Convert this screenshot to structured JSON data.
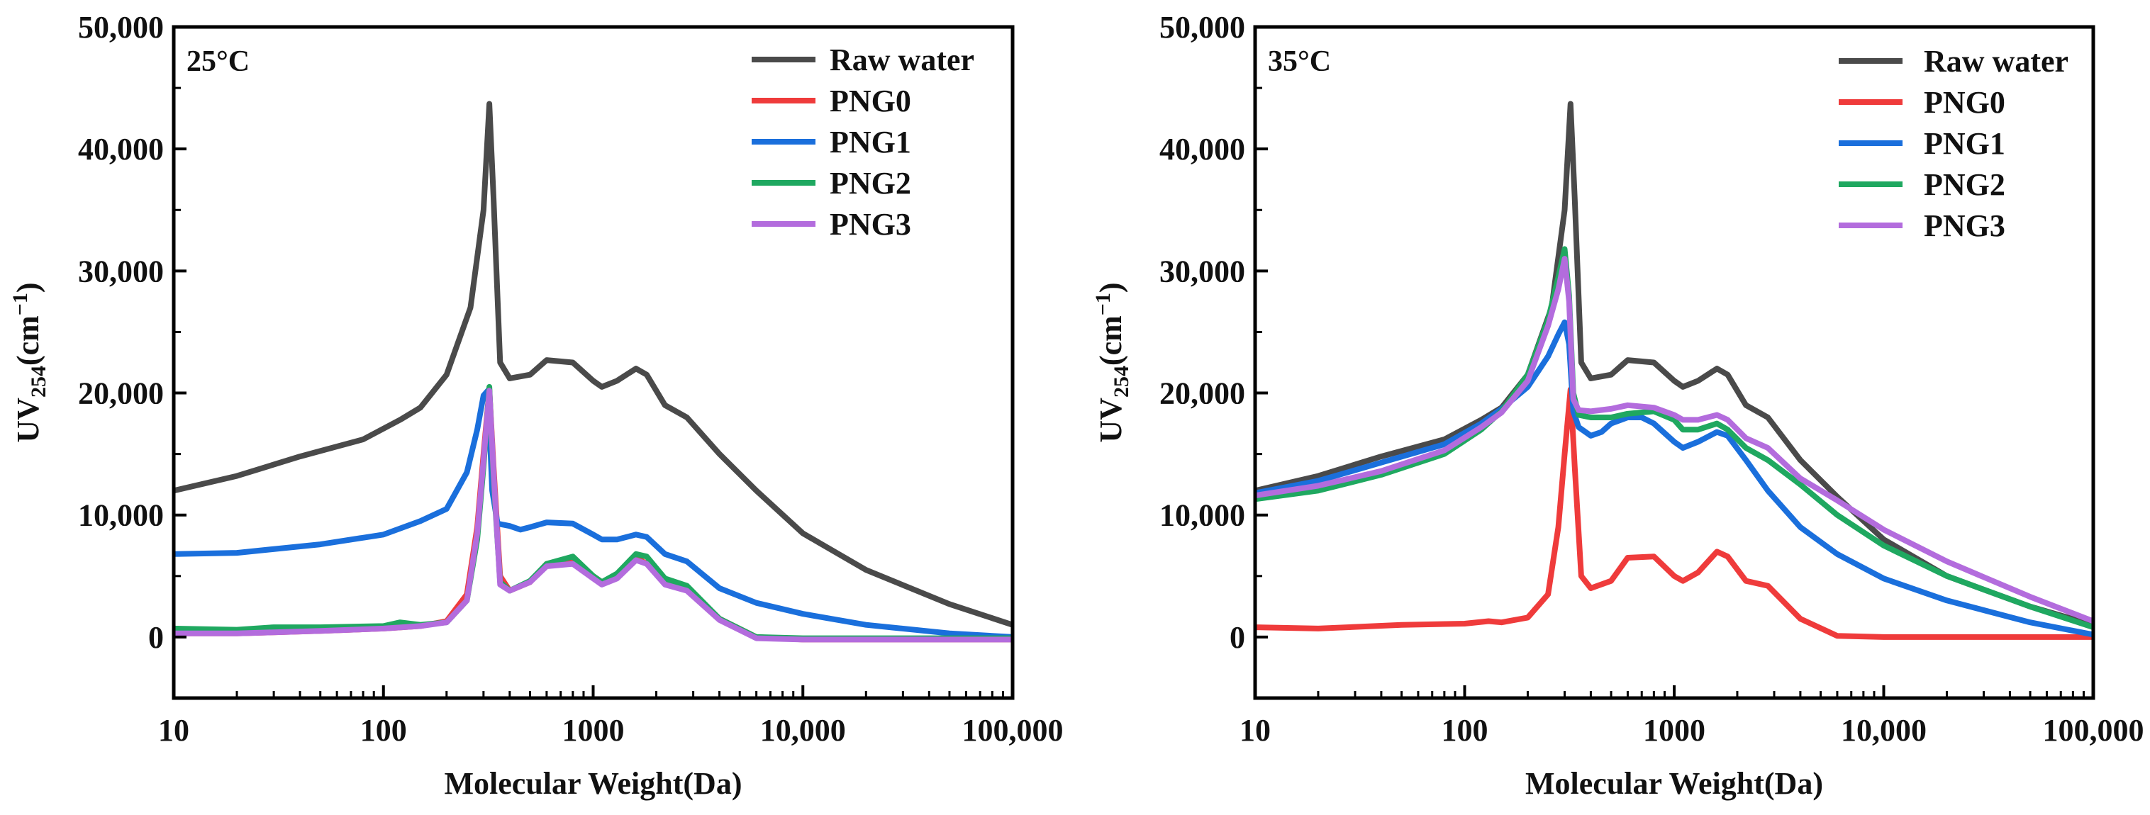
{
  "chart_data": [
    {
      "type": "line",
      "title": "25°C",
      "xlabel": "Molecular Weight(Da)",
      "ylabel": "UV254(cm−1)",
      "ylabel_main": "UV",
      "ylabel_sub": "254",
      "ylabel_unit": "(cm",
      "ylabel_sup": "−1",
      "ylabel_close": ")",
      "xscale": "log",
      "xlim": [
        10,
        100000
      ],
      "ylim": [
        -5000,
        50000
      ],
      "xticks": [
        10,
        100,
        1000,
        10000,
        100000
      ],
      "xtick_labels": [
        "10",
        "100",
        "1000",
        "10,000",
        "100,000"
      ],
      "yticks": [
        0,
        10000,
        20000,
        30000,
        40000,
        50000
      ],
      "ytick_labels": [
        "0",
        "10,000",
        "20,000",
        "30,000",
        "40,000",
        "50,000"
      ],
      "legend_position": "top-right",
      "series": [
        {
          "name": "Raw water",
          "color": "#4a4a4a",
          "x": [
            10,
            20,
            40,
            80,
            120,
            150,
            200,
            260,
            300,
            320,
            335,
            360,
            400,
            500,
            600,
            800,
            1000,
            1100,
            1300,
            1600,
            1800,
            2200,
            2800,
            4000,
            6000,
            10000,
            20000,
            50000,
            100000
          ],
          "y": [
            12000,
            13200,
            14800,
            16200,
            17800,
            18800,
            21500,
            27000,
            35000,
            43700,
            36000,
            22500,
            21200,
            21500,
            22700,
            22500,
            21000,
            20500,
            21000,
            22000,
            21500,
            19000,
            18000,
            15000,
            12000,
            8500,
            5500,
            2700,
            1000
          ]
        },
        {
          "name": "PNG0",
          "color": "#ef3b3b",
          "x": [
            10,
            20,
            50,
            100,
            150,
            200,
            250,
            280,
            300,
            320,
            335,
            360,
            400,
            500,
            600,
            800,
            1000,
            1100,
            1300,
            1600,
            1800,
            2200,
            2800,
            4000,
            6000,
            10000,
            20000,
            50000,
            100000
          ],
          "y": [
            300,
            300,
            500,
            700,
            900,
            1300,
            3500,
            9000,
            15000,
            20300,
            14000,
            5000,
            3800,
            4500,
            6000,
            6200,
            5000,
            4500,
            5000,
            6500,
            6000,
            4500,
            4000,
            1500,
            0,
            -200,
            -200,
            -200,
            -200
          ]
        },
        {
          "name": "PNG1",
          "color": "#1a6fdc",
          "x": [
            10,
            20,
            50,
            100,
            150,
            200,
            250,
            280,
            300,
            315,
            330,
            350,
            400,
            450,
            500,
            600,
            800,
            1000,
            1100,
            1300,
            1600,
            1800,
            2200,
            2800,
            4000,
            6000,
            10000,
            20000,
            50000,
            100000
          ],
          "y": [
            6800,
            6900,
            7600,
            8400,
            9500,
            10500,
            13500,
            17000,
            19800,
            20200,
            12000,
            9300,
            9100,
            8800,
            9000,
            9400,
            9300,
            8400,
            8000,
            8000,
            8400,
            8200,
            6800,
            6200,
            4000,
            2800,
            1900,
            1000,
            300,
            0
          ]
        },
        {
          "name": "PNG2",
          "color": "#1fa860",
          "x": [
            10,
            20,
            30,
            50,
            100,
            120,
            150,
            200,
            250,
            280,
            300,
            320,
            335,
            360,
            400,
            500,
            600,
            800,
            1000,
            1100,
            1300,
            1600,
            1800,
            2200,
            2800,
            4000,
            6000,
            10000,
            20000,
            50000,
            100000
          ],
          "y": [
            700,
            600,
            800,
            800,
            900,
            1200,
            1000,
            1200,
            3000,
            8000,
            14000,
            20500,
            13000,
            4500,
            3800,
            4600,
            6000,
            6600,
            5000,
            4500,
            5200,
            6800,
            6600,
            4800,
            4200,
            1500,
            0,
            -100,
            -100,
            -100,
            -100
          ]
        },
        {
          "name": "PNG3",
          "color": "#b36cdd",
          "x": [
            10,
            20,
            50,
            100,
            150,
            200,
            250,
            280,
            300,
            320,
            335,
            360,
            400,
            500,
            600,
            800,
            1000,
            1100,
            1300,
            1600,
            1800,
            2200,
            2800,
            4000,
            6000,
            10000,
            20000,
            50000,
            100000
          ],
          "y": [
            300,
            300,
            500,
            700,
            900,
            1200,
            3000,
            8500,
            14500,
            20200,
            13500,
            4300,
            3800,
            4500,
            5800,
            6000,
            4800,
            4300,
            4800,
            6300,
            6000,
            4300,
            3800,
            1400,
            -100,
            -200,
            -200,
            -200,
            -200
          ]
        }
      ]
    },
    {
      "type": "line",
      "title": "35°C",
      "xlabel": "Molecular Weight(Da)",
      "ylabel": "UV254(cm−1)",
      "ylabel_main": "UV",
      "ylabel_sub": "254",
      "ylabel_unit": "(cm",
      "ylabel_sup": "−1",
      "ylabel_close": ")",
      "xscale": "log",
      "xlim": [
        10,
        100000
      ],
      "ylim": [
        -5000,
        50000
      ],
      "xticks": [
        10,
        100,
        1000,
        10000,
        100000
      ],
      "xtick_labels": [
        "10",
        "100",
        "1000",
        "10,000",
        "100,000"
      ],
      "yticks": [
        0,
        10000,
        20000,
        30000,
        40000,
        50000
      ],
      "ytick_labels": [
        "0",
        "10,000",
        "20,000",
        "30,000",
        "40,000",
        "50,000"
      ],
      "legend_position": "top-right",
      "series": [
        {
          "name": "Raw water",
          "color": "#4a4a4a",
          "x": [
            10,
            20,
            40,
            80,
            120,
            150,
            200,
            260,
            300,
            320,
            335,
            360,
            400,
            500,
            600,
            800,
            1000,
            1100,
            1300,
            1600,
            1800,
            2200,
            2800,
            4000,
            6000,
            10000,
            20000,
            50000,
            100000
          ],
          "y": [
            12000,
            13200,
            14800,
            16200,
            17800,
            18800,
            21500,
            27000,
            35000,
            43700,
            36000,
            22500,
            21200,
            21500,
            22700,
            22500,
            21000,
            20500,
            21000,
            22000,
            21500,
            19000,
            18000,
            14500,
            11500,
            8000,
            5000,
            2500,
            1000
          ]
        },
        {
          "name": "PNG0",
          "color": "#ef3b3b",
          "x": [
            10,
            20,
            50,
            100,
            130,
            150,
            200,
            250,
            280,
            300,
            320,
            335,
            360,
            400,
            500,
            600,
            800,
            1000,
            1100,
            1300,
            1600,
            1800,
            2200,
            2800,
            4000,
            6000,
            10000,
            20000,
            50000,
            100000
          ],
          "y": [
            800,
            700,
            1000,
            1100,
            1300,
            1200,
            1600,
            3500,
            9000,
            15000,
            20300,
            14000,
            5000,
            4000,
            4600,
            6500,
            6600,
            5000,
            4600,
            5300,
            7000,
            6600,
            4600,
            4200,
            1500,
            100,
            0,
            0,
            0,
            0
          ]
        },
        {
          "name": "PNG1",
          "color": "#1a6fdc",
          "x": [
            10,
            20,
            40,
            80,
            120,
            150,
            200,
            250,
            280,
            300,
            315,
            330,
            350,
            400,
            450,
            500,
            600,
            700,
            800,
            1000,
            1100,
            1300,
            1600,
            1800,
            2200,
            2800,
            4000,
            6000,
            10000,
            20000,
            50000,
            100000
          ],
          "y": [
            11800,
            12800,
            14300,
            15800,
            17500,
            18700,
            20500,
            23000,
            24800,
            25800,
            24000,
            18500,
            17200,
            16500,
            16800,
            17500,
            18000,
            18000,
            17500,
            16000,
            15500,
            16000,
            16800,
            16500,
            14500,
            12000,
            9000,
            6800,
            4800,
            3000,
            1200,
            200
          ]
        },
        {
          "name": "PNG2",
          "color": "#1fa860",
          "x": [
            10,
            20,
            40,
            80,
            120,
            150,
            200,
            250,
            280,
            300,
            315,
            330,
            350,
            400,
            500,
            600,
            800,
            1000,
            1100,
            1300,
            1600,
            1800,
            2200,
            2800,
            4000,
            6000,
            10000,
            20000,
            50000,
            100000
          ],
          "y": [
            11300,
            12000,
            13300,
            15000,
            17000,
            18500,
            21500,
            26000,
            29500,
            31800,
            28000,
            20000,
            18200,
            18000,
            18000,
            18300,
            18500,
            17800,
            17000,
            17000,
            17500,
            17000,
            15500,
            14500,
            12500,
            10000,
            7500,
            5000,
            2500,
            800
          ]
        },
        {
          "name": "PNG3",
          "color": "#b36cdd",
          "x": [
            10,
            20,
            40,
            80,
            120,
            150,
            200,
            250,
            280,
            300,
            315,
            330,
            350,
            400,
            500,
            600,
            800,
            1000,
            1100,
            1300,
            1600,
            1800,
            2200,
            2800,
            4000,
            6000,
            10000,
            20000,
            50000,
            100000
          ],
          "y": [
            11600,
            12400,
            13600,
            15300,
            17200,
            18400,
            21000,
            25500,
            28500,
            31000,
            27500,
            19500,
            18600,
            18500,
            18700,
            19000,
            18800,
            18200,
            17800,
            17800,
            18200,
            17800,
            16300,
            15500,
            13000,
            11200,
            8800,
            6200,
            3300,
            1300
          ]
        }
      ]
    }
  ]
}
